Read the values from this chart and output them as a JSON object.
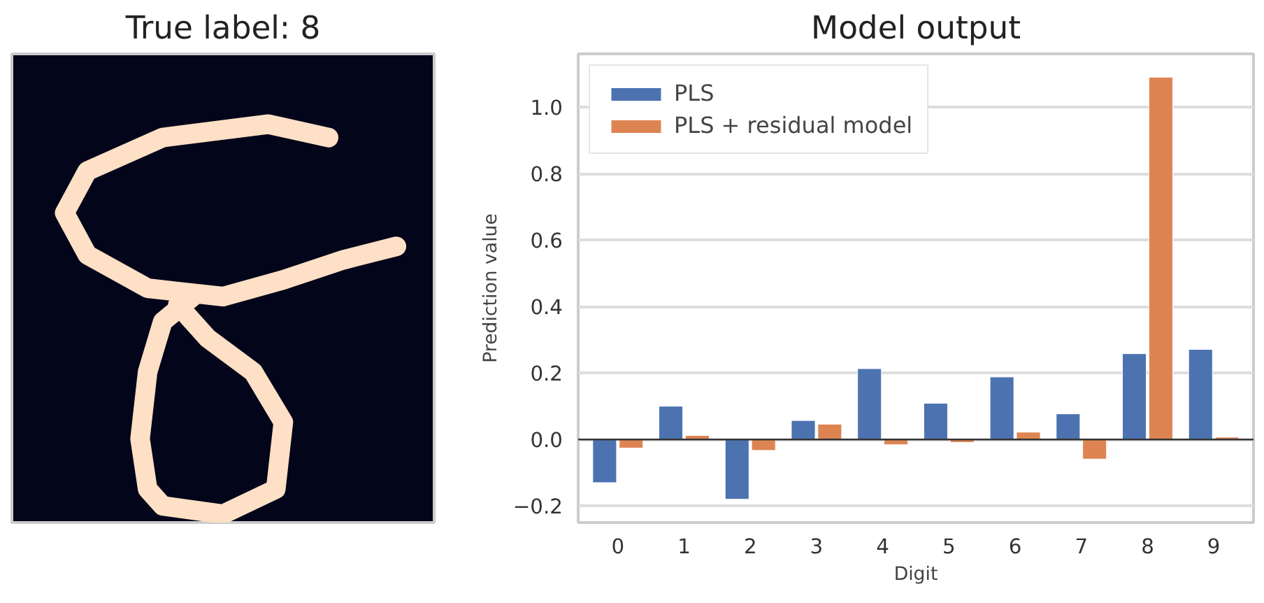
{
  "chart_data": [
    {
      "type": "other",
      "title": "True label: 8"
    },
    {
      "type": "bar",
      "title": "Model output",
      "xlabel": "Digit",
      "ylabel": "Prediction value",
      "categories": [
        "0",
        "1",
        "2",
        "3",
        "4",
        "5",
        "6",
        "7",
        "8",
        "9"
      ],
      "series": [
        {
          "name": "PLS",
          "color": "#4c72b0",
          "values": [
            -0.13,
            0.1,
            -0.18,
            0.057,
            0.213,
            0.109,
            0.188,
            0.077,
            0.258,
            0.271
          ]
        },
        {
          "name": "PLS + residual model",
          "color": "#dd8452",
          "values": [
            -0.026,
            0.012,
            -0.033,
            0.046,
            -0.016,
            -0.009,
            0.022,
            -0.059,
            1.09,
            0.007
          ]
        }
      ],
      "ylim": [
        -0.25,
        1.16
      ],
      "yticks": [
        {
          "value": -0.2,
          "label": "−0.2"
        },
        {
          "value": 0,
          "label": "0.0"
        },
        {
          "value": 0.2,
          "label": "0.2"
        },
        {
          "value": 0.4,
          "label": "0.4"
        },
        {
          "value": 0.6,
          "label": "0.6"
        },
        {
          "value": 0.8,
          "label": "0.8"
        },
        {
          "value": 1.0,
          "label": "1.0"
        }
      ],
      "ref_lines": [
        {
          "axis": "y",
          "value": 0,
          "color": "#333333"
        }
      ],
      "grid": "y",
      "legend": "top left"
    }
  ]
}
